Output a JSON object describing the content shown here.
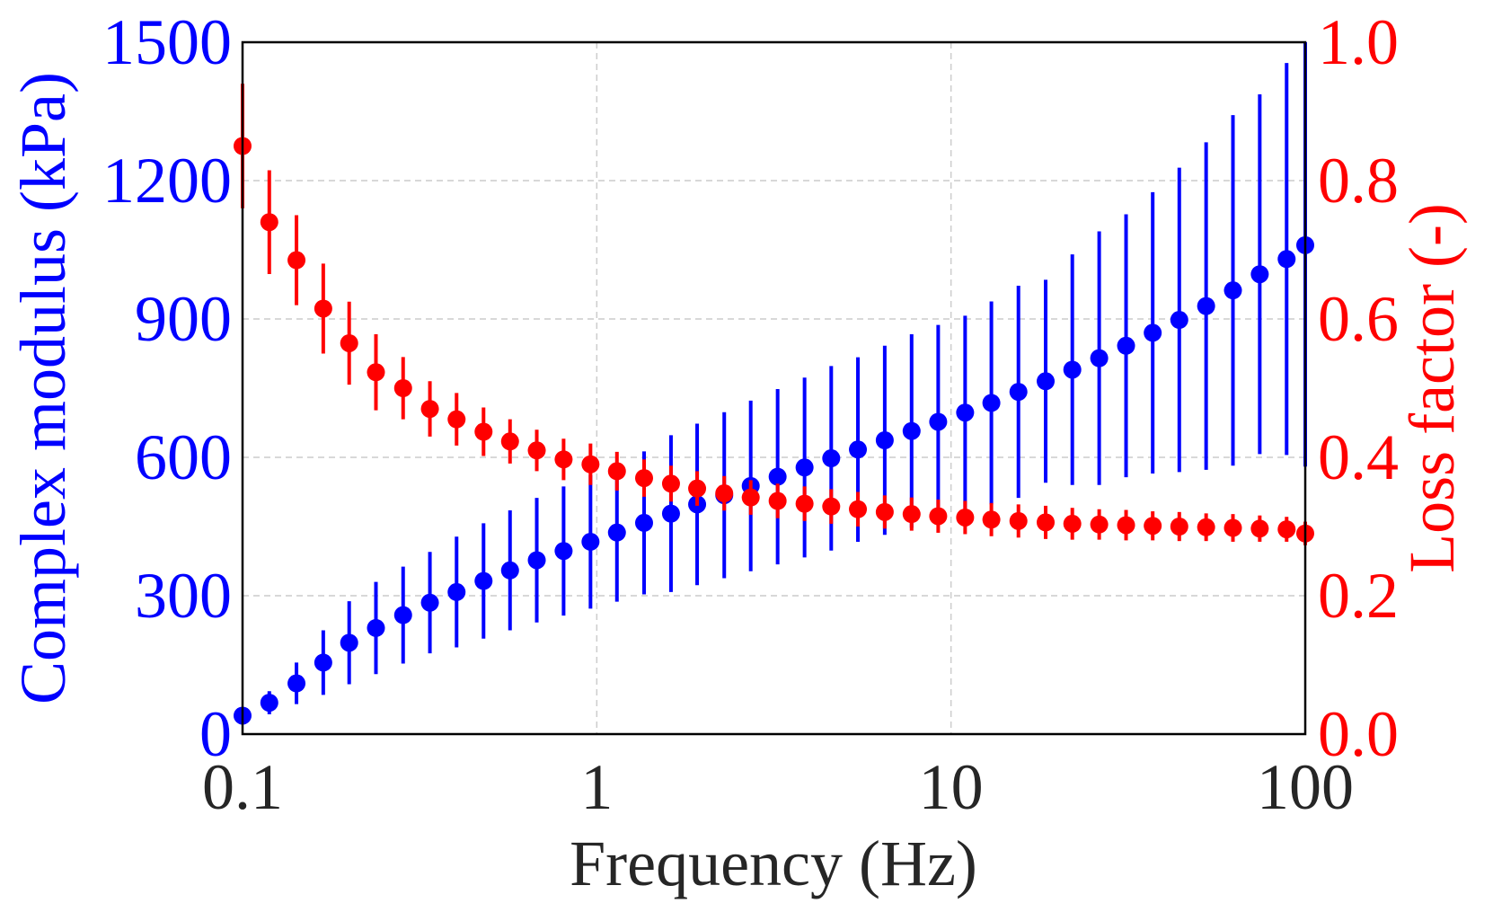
{
  "chart_data": {
    "type": "scatter",
    "title": "",
    "xlabel": "Frequency (Hz)",
    "ylabel_left": "Complex modulus (kPa)",
    "ylabel_right": "Loss factor (-)",
    "xscale": "log",
    "xlim": [
      0.1,
      100
    ],
    "ylim_left": [
      0,
      1500
    ],
    "ylim_right": [
      0,
      1.0
    ],
    "grid": true,
    "x_ticks": [
      {
        "value": 0.1,
        "label": "0.1"
      },
      {
        "value": 1,
        "label": "1"
      },
      {
        "value": 10,
        "label": "10"
      },
      {
        "value": 100,
        "label": "100"
      }
    ],
    "y_left_ticks": [
      {
        "value": 0,
        "label": "0"
      },
      {
        "value": 300,
        "label": "300"
      },
      {
        "value": 600,
        "label": "600"
      },
      {
        "value": 900,
        "label": "900"
      },
      {
        "value": 1200,
        "label": "1200"
      },
      {
        "value": 1500,
        "label": "1500"
      }
    ],
    "y_right_ticks": [
      {
        "value": 0,
        "label": "0.0"
      },
      {
        "value": 0.2,
        "label": "0.2"
      },
      {
        "value": 0.4,
        "label": "0.4"
      },
      {
        "value": 0.6,
        "label": "0.6"
      },
      {
        "value": 0.8,
        "label": "0.8"
      },
      {
        "value": 1.0,
        "label": "1.0"
      }
    ],
    "colors": {
      "modulus": "#0000ff",
      "loss": "#ff0000",
      "text": "#262626",
      "grid": "#cccccc"
    },
    "series": [
      {
        "name": "Complex modulus",
        "axis": "left",
        "color": "#0000ff",
        "x": [
          0.1,
          0.119,
          0.142,
          0.169,
          0.2,
          0.238,
          0.284,
          0.338,
          0.402,
          0.479,
          0.569,
          0.677,
          0.806,
          0.96,
          1.14,
          1.36,
          1.62,
          1.92,
          2.29,
          2.72,
          3.24,
          3.86,
          4.59,
          5.46,
          6.5,
          7.74,
          9.2,
          10.96,
          13.0,
          15.5,
          18.5,
          22.0,
          26.2,
          31.2,
          37.1,
          44.1,
          52.5,
          62.5,
          74.4,
          88.6,
          100
        ],
        "values": [
          40,
          68,
          110,
          155,
          198,
          230,
          258,
          285,
          308,
          332,
          355,
          377,
          397,
          417,
          437,
          458,
          478,
          498,
          518,
          538,
          558,
          578,
          598,
          617,
          637,
          657,
          677,
          697,
          718,
          742,
          765,
          790,
          815,
          842,
          870,
          898,
          928,
          962,
          997,
          1030,
          1060
        ],
        "err": [
          10,
          25,
          45,
          70,
          90,
          100,
          105,
          110,
          120,
          125,
          130,
          135,
          140,
          145,
          150,
          155,
          170,
          175,
          180,
          185,
          190,
          195,
          200,
          200,
          205,
          210,
          210,
          210,
          220,
          230,
          220,
          250,
          275,
          285,
          305,
          330,
          355,
          380,
          390,
          425,
          480
        ]
      },
      {
        "name": "Loss factor",
        "axis": "right",
        "color": "#ff0000",
        "x": [
          0.1,
          0.119,
          0.142,
          0.169,
          0.2,
          0.238,
          0.284,
          0.338,
          0.402,
          0.479,
          0.569,
          0.677,
          0.806,
          0.96,
          1.14,
          1.36,
          1.62,
          1.92,
          2.29,
          2.72,
          3.24,
          3.86,
          4.59,
          5.46,
          6.5,
          7.74,
          9.2,
          10.96,
          13.0,
          15.5,
          18.5,
          22.0,
          26.2,
          31.2,
          37.1,
          44.1,
          52.5,
          62.5,
          74.4,
          88.6,
          100
        ],
        "values": [
          0.85,
          0.74,
          0.685,
          0.615,
          0.565,
          0.523,
          0.5,
          0.47,
          0.455,
          0.437,
          0.423,
          0.41,
          0.397,
          0.39,
          0.38,
          0.37,
          0.362,
          0.355,
          0.348,
          0.342,
          0.337,
          0.333,
          0.329,
          0.325,
          0.321,
          0.318,
          0.315,
          0.313,
          0.31,
          0.308,
          0.306,
          0.304,
          0.303,
          0.302,
          0.301,
          0.3,
          0.299,
          0.298,
          0.297,
          0.296,
          0.29
        ],
        "err": [
          0.09,
          0.075,
          0.065,
          0.065,
          0.06,
          0.055,
          0.045,
          0.04,
          0.038,
          0.035,
          0.032,
          0.03,
          0.03,
          0.03,
          0.028,
          0.027,
          0.026,
          0.025,
          0.025,
          0.025,
          0.025,
          0.025,
          0.025,
          0.025,
          0.024,
          0.024,
          0.024,
          0.024,
          0.024,
          0.024,
          0.024,
          0.023,
          0.022,
          0.022,
          0.021,
          0.021,
          0.02,
          0.02,
          0.019,
          0.018,
          0.017
        ]
      }
    ]
  }
}
